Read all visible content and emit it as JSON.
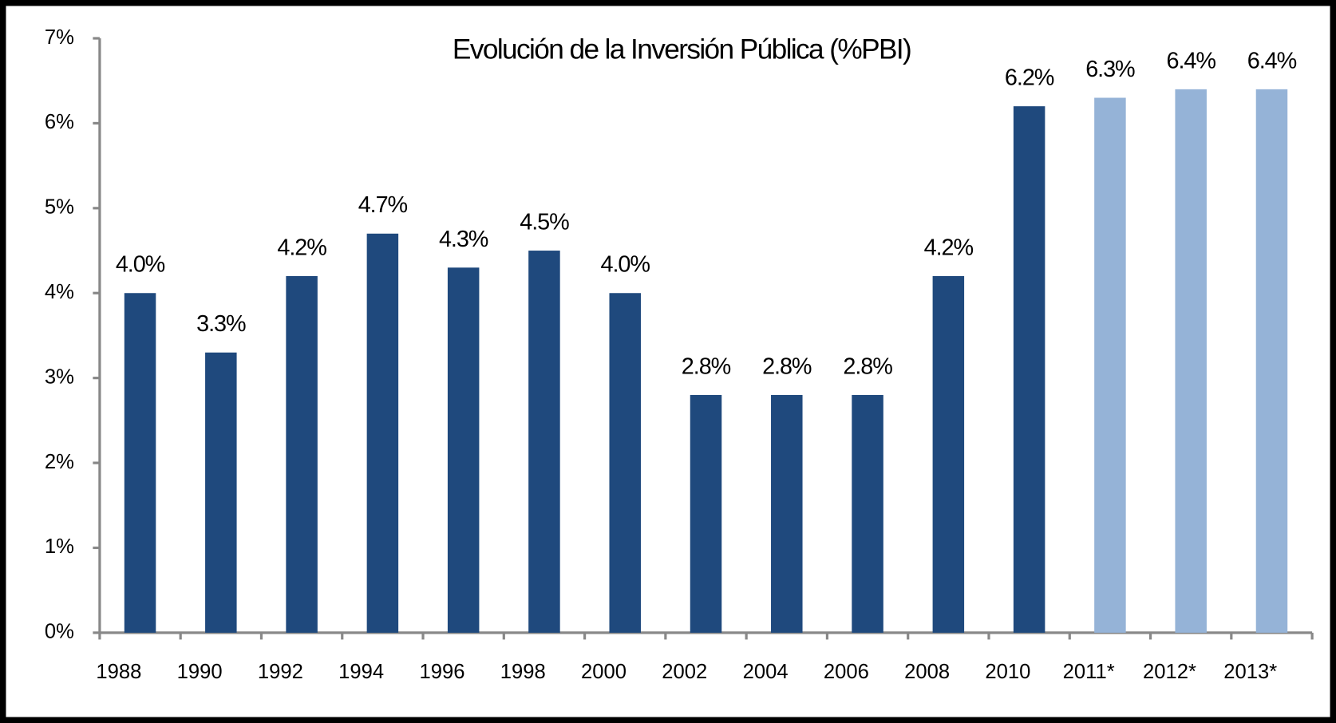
{
  "chart_data": {
    "type": "bar",
    "title": "Evolución de la Inversión Pública (%PBI)",
    "categories": [
      "1988",
      "1990",
      "1992",
      "1994",
      "1996",
      "1998",
      "2000",
      "2002",
      "2004",
      "2006",
      "2008",
      "2010",
      "2011*",
      "2012*",
      "2013*"
    ],
    "values": [
      4.0,
      3.3,
      4.2,
      4.7,
      4.3,
      4.5,
      4.0,
      2.8,
      2.8,
      2.8,
      4.2,
      6.2,
      6.3,
      6.4,
      6.4
    ],
    "value_labels": [
      "4.0%",
      "3.3%",
      "4.2%",
      "4.7%",
      "4.3%",
      "4.5%",
      "4.0%",
      "2.8%",
      "2.8%",
      "2.8%",
      "4.2%",
      "6.2%",
      "6.3%",
      "6.4%",
      "6.4%"
    ],
    "colors": [
      "#1f497d",
      "#1f497d",
      "#1f497d",
      "#1f497d",
      "#1f497d",
      "#1f497d",
      "#1f497d",
      "#1f497d",
      "#1f497d",
      "#1f497d",
      "#1f497d",
      "#1f497d",
      "#95b3d7",
      "#95b3d7",
      "#95b3d7"
    ],
    "ylim": [
      0,
      7
    ],
    "yticks": [
      {
        "value": 0,
        "label": "0%"
      },
      {
        "value": 1,
        "label": "1%"
      },
      {
        "value": 2,
        "label": "2%"
      },
      {
        "value": 3,
        "label": "3%"
      },
      {
        "value": 4,
        "label": "4%"
      },
      {
        "value": 5,
        "label": "5%"
      },
      {
        "value": 6,
        "label": "6%"
      },
      {
        "value": 7,
        "label": "7%"
      }
    ],
    "grid": false
  }
}
